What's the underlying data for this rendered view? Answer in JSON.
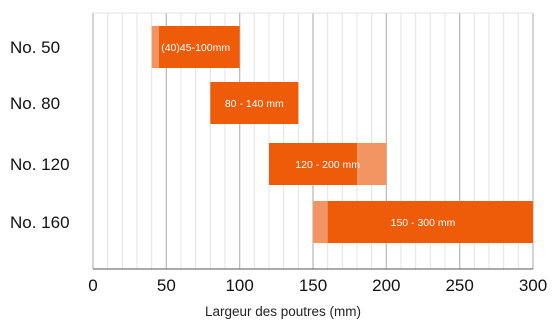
{
  "chart_data": {
    "type": "bar",
    "orientation": "horizontal",
    "categories": [
      "No. 50",
      "No. 80",
      "No. 120",
      "No. 160"
    ],
    "bars": [
      {
        "category": "No. 50",
        "extension": [
          40,
          45
        ],
        "range": [
          45,
          100
        ],
        "label": "(40)45-100mm"
      },
      {
        "category": "No. 80",
        "extension": null,
        "range": [
          80,
          140
        ],
        "label": "80 - 140 mm"
      },
      {
        "category": "No. 120",
        "extension": [
          180,
          200
        ],
        "range": [
          120,
          180
        ],
        "label": "120 - 200 mm"
      },
      {
        "category": "No. 160",
        "extension": [
          150,
          160
        ],
        "range": [
          160,
          300
        ],
        "label": "150 - 300 mm"
      }
    ],
    "xlabel": "Largeur des poutres (mm)",
    "ylabel": "",
    "xlim": [
      0,
      300
    ],
    "xticks": [
      "0",
      "50",
      "100",
      "150",
      "200",
      "250",
      "300"
    ],
    "minor_grid_step": 10,
    "grid": true,
    "colors": {
      "bar": "#ee5b09",
      "extension": "#f39463",
      "major_grid": "#bdbdbd",
      "minor_grid": "#e3e3e3",
      "axis": "#555555"
    }
  }
}
